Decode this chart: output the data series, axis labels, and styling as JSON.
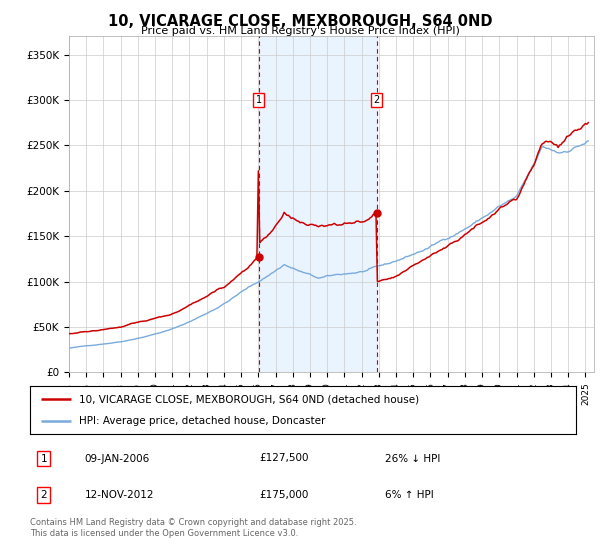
{
  "title": "10, VICARAGE CLOSE, MEXBOROUGH, S64 0ND",
  "subtitle": "Price paid vs. HM Land Registry's House Price Index (HPI)",
  "ylim": [
    0,
    370000
  ],
  "yticks": [
    0,
    50000,
    100000,
    150000,
    200000,
    250000,
    300000,
    350000
  ],
  "ytick_labels": [
    "£0",
    "£50K",
    "£100K",
    "£150K",
    "£200K",
    "£250K",
    "£300K",
    "£350K"
  ],
  "hpi_color": "#7aabdc",
  "price_color": "#cc0000",
  "sale1_t": 2006.03,
  "sale1_price": 127500,
  "sale2_t": 2012.87,
  "sale2_price": 175000,
  "legend_line1": "10, VICARAGE CLOSE, MEXBOROUGH, S64 0ND (detached house)",
  "legend_line2": "HPI: Average price, detached house, Doncaster",
  "footnote1": "Contains HM Land Registry data © Crown copyright and database right 2025.",
  "footnote2": "This data is licensed under the Open Government Licence v3.0.",
  "shaded_color": "#ddeeff",
  "background_color": "#ffffff"
}
